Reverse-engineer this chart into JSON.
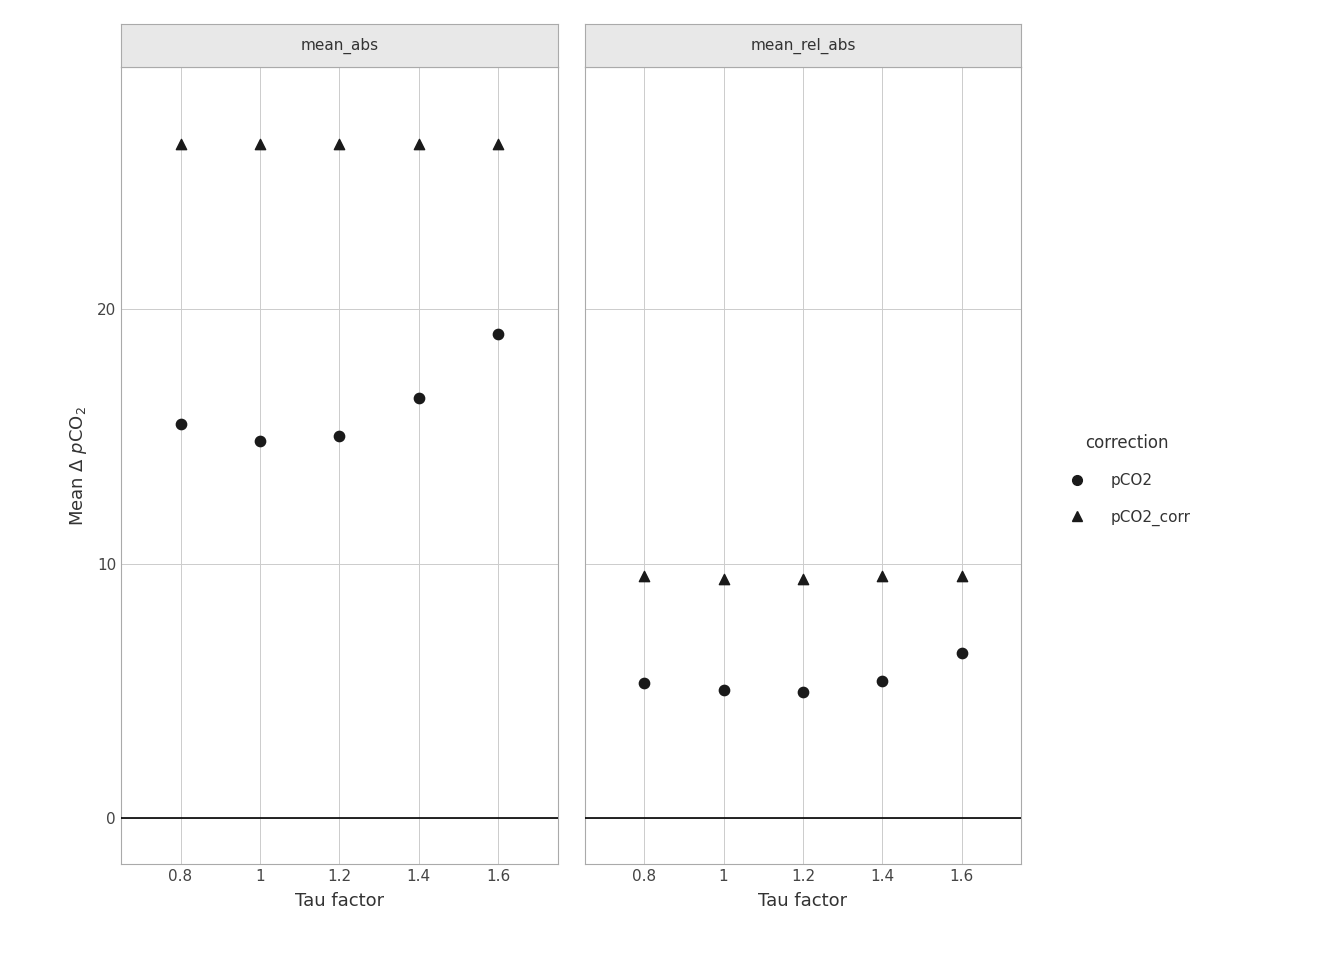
{
  "tau_factors": [
    0.8,
    1.0,
    1.2,
    1.4,
    1.6
  ],
  "mean_abs": {
    "pCO2": [
      15.5,
      14.8,
      15.0,
      16.5,
      19.0
    ],
    "pCO2_corr": [
      26.5,
      26.5,
      26.5,
      26.5,
      26.5
    ]
  },
  "mean_rel_abs": {
    "pCO2": [
      5.3,
      5.05,
      4.95,
      5.4,
      6.5
    ],
    "pCO2_corr": [
      9.5,
      9.4,
      9.4,
      9.5,
      9.5
    ]
  },
  "panel_labels": [
    "mean_abs",
    "mean_rel_abs"
  ],
  "xlabel": "Tau factor",
  "ylabel_math": "Mean Δ pCO2",
  "legend_title": "correction",
  "legend_entries": [
    "pCO2",
    "pCO2_corr"
  ],
  "ylim": [
    -1.8,
    29.5
  ],
  "yticks": [
    0,
    10,
    20
  ],
  "xticks": [
    0.8,
    1.0,
    1.2,
    1.4,
    1.6
  ],
  "xtick_labels": [
    "0.8",
    "1",
    "1.2",
    "1.4",
    "1.6"
  ],
  "marker_circle": "o",
  "marker_triangle": "^",
  "marker_color": "#1a1a1a",
  "marker_size": 55,
  "panel_bg": "#ffffff",
  "grid_color": "#cccccc",
  "facet_label_bg": "#e8e8e8",
  "facet_label_color": "#333333",
  "hline_y": 0,
  "hline_color": "#000000",
  "hline_lw": 1.2,
  "axis_text_size": 11,
  "axis_title_size": 13,
  "facet_text_size": 11,
  "legend_text_size": 11,
  "legend_title_size": 12
}
